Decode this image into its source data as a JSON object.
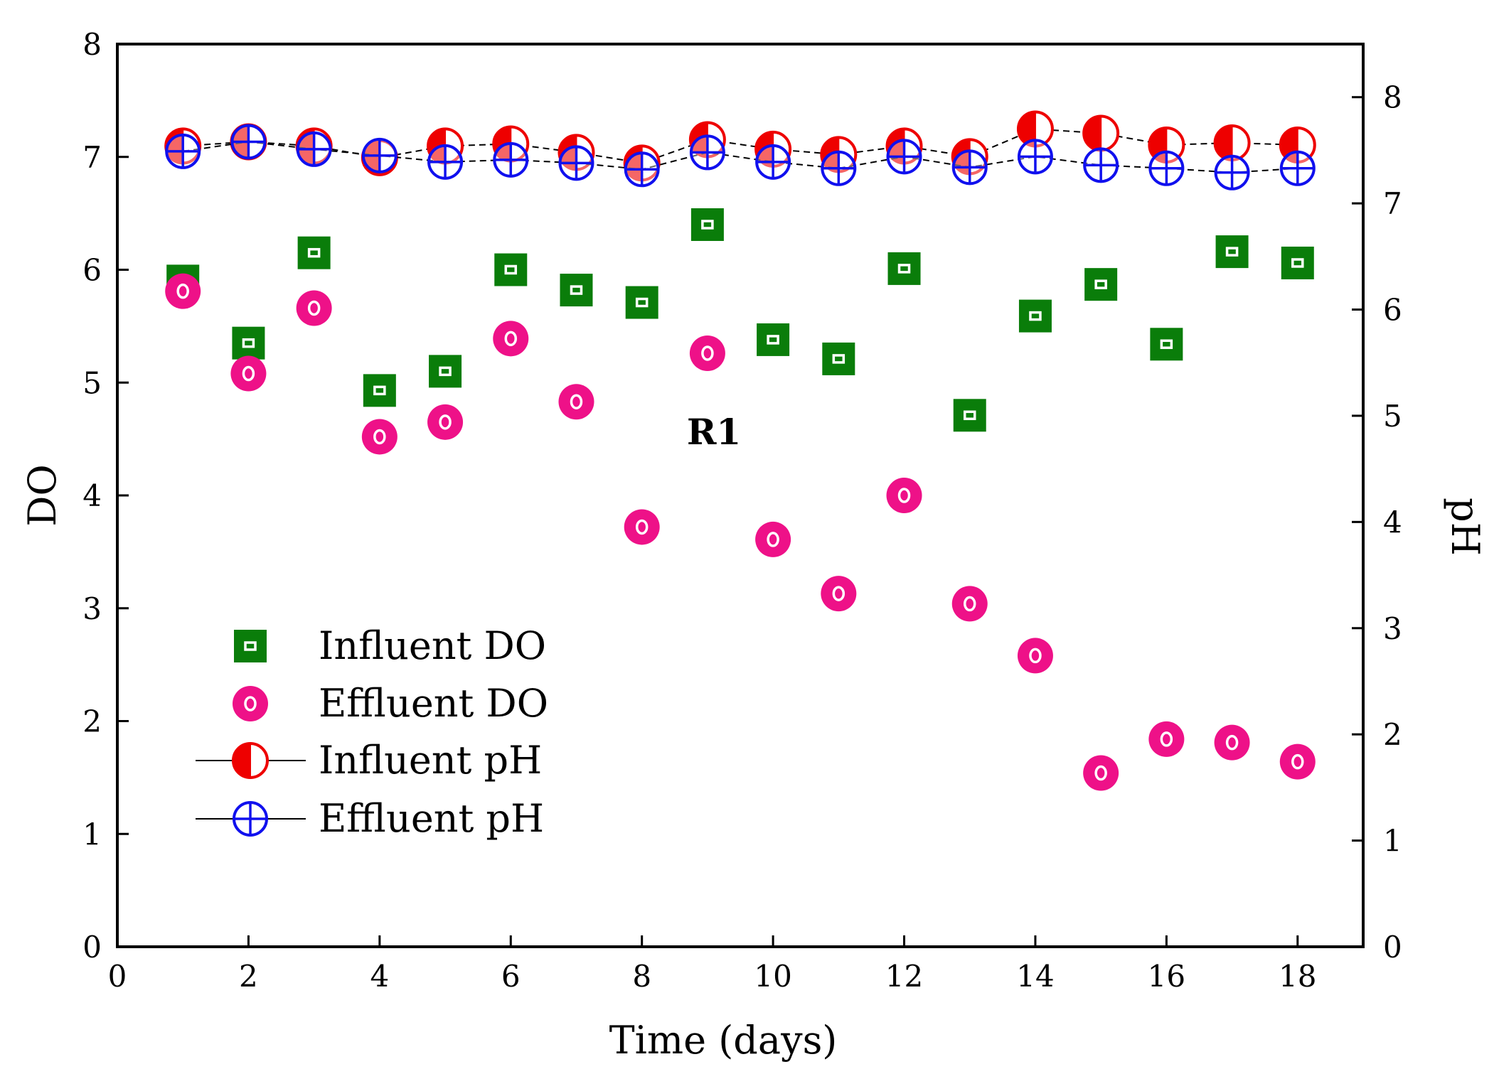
{
  "chart_data": {
    "type": "scatter",
    "title": "",
    "annotation": "R1",
    "xlabel": "Time (days)",
    "ylabel": "DO",
    "y2label": "pH",
    "xlim": [
      0,
      19
    ],
    "ylim": [
      0,
      8
    ],
    "y2lim": [
      0,
      8.5
    ],
    "xticks": [
      0,
      2,
      4,
      6,
      8,
      10,
      12,
      14,
      16,
      18
    ],
    "yticks": [
      0,
      1,
      2,
      3,
      4,
      5,
      6,
      7,
      8
    ],
    "y2ticks": [
      0,
      1,
      2,
      3,
      4,
      5,
      6,
      7,
      8
    ],
    "x": [
      1,
      2,
      3,
      4,
      5,
      6,
      7,
      8,
      9,
      10,
      11,
      12,
      13,
      14,
      15,
      16,
      17,
      18
    ],
    "series": [
      {
        "name": "Influent DO",
        "axis": "left",
        "marker": "square-dot",
        "color": "#0a7d0a",
        "line": false,
        "values": [
          5.9,
          5.35,
          6.15,
          4.93,
          5.1,
          6.0,
          5.82,
          5.71,
          6.4,
          5.38,
          5.21,
          6.01,
          4.71,
          5.59,
          5.87,
          5.34,
          6.16,
          6.06
        ]
      },
      {
        "name": "Effluent DO",
        "axis": "left",
        "marker": "circle-ring",
        "color": "#ee1188",
        "line": false,
        "values": [
          5.81,
          5.08,
          5.66,
          4.52,
          4.65,
          5.39,
          4.83,
          3.72,
          5.26,
          3.61,
          3.13,
          4.0,
          3.04,
          2.58,
          1.54,
          1.84,
          1.81,
          1.64
        ]
      },
      {
        "name": "Influent pH",
        "axis": "right",
        "marker": "half-filled-circle",
        "color": "#ee0000",
        "line": true,
        "values": [
          7.54,
          7.58,
          7.54,
          7.43,
          7.54,
          7.56,
          7.48,
          7.38,
          7.6,
          7.51,
          7.46,
          7.54,
          7.44,
          7.7,
          7.66,
          7.55,
          7.57,
          7.55
        ]
      },
      {
        "name": "Effluent pH",
        "axis": "right",
        "marker": "crossed-circle",
        "color": "#1010ee",
        "line": true,
        "values": [
          7.49,
          7.58,
          7.51,
          7.45,
          7.39,
          7.41,
          7.38,
          7.32,
          7.48,
          7.39,
          7.33,
          7.44,
          7.34,
          7.44,
          7.36,
          7.33,
          7.29,
          7.33
        ]
      }
    ]
  }
}
